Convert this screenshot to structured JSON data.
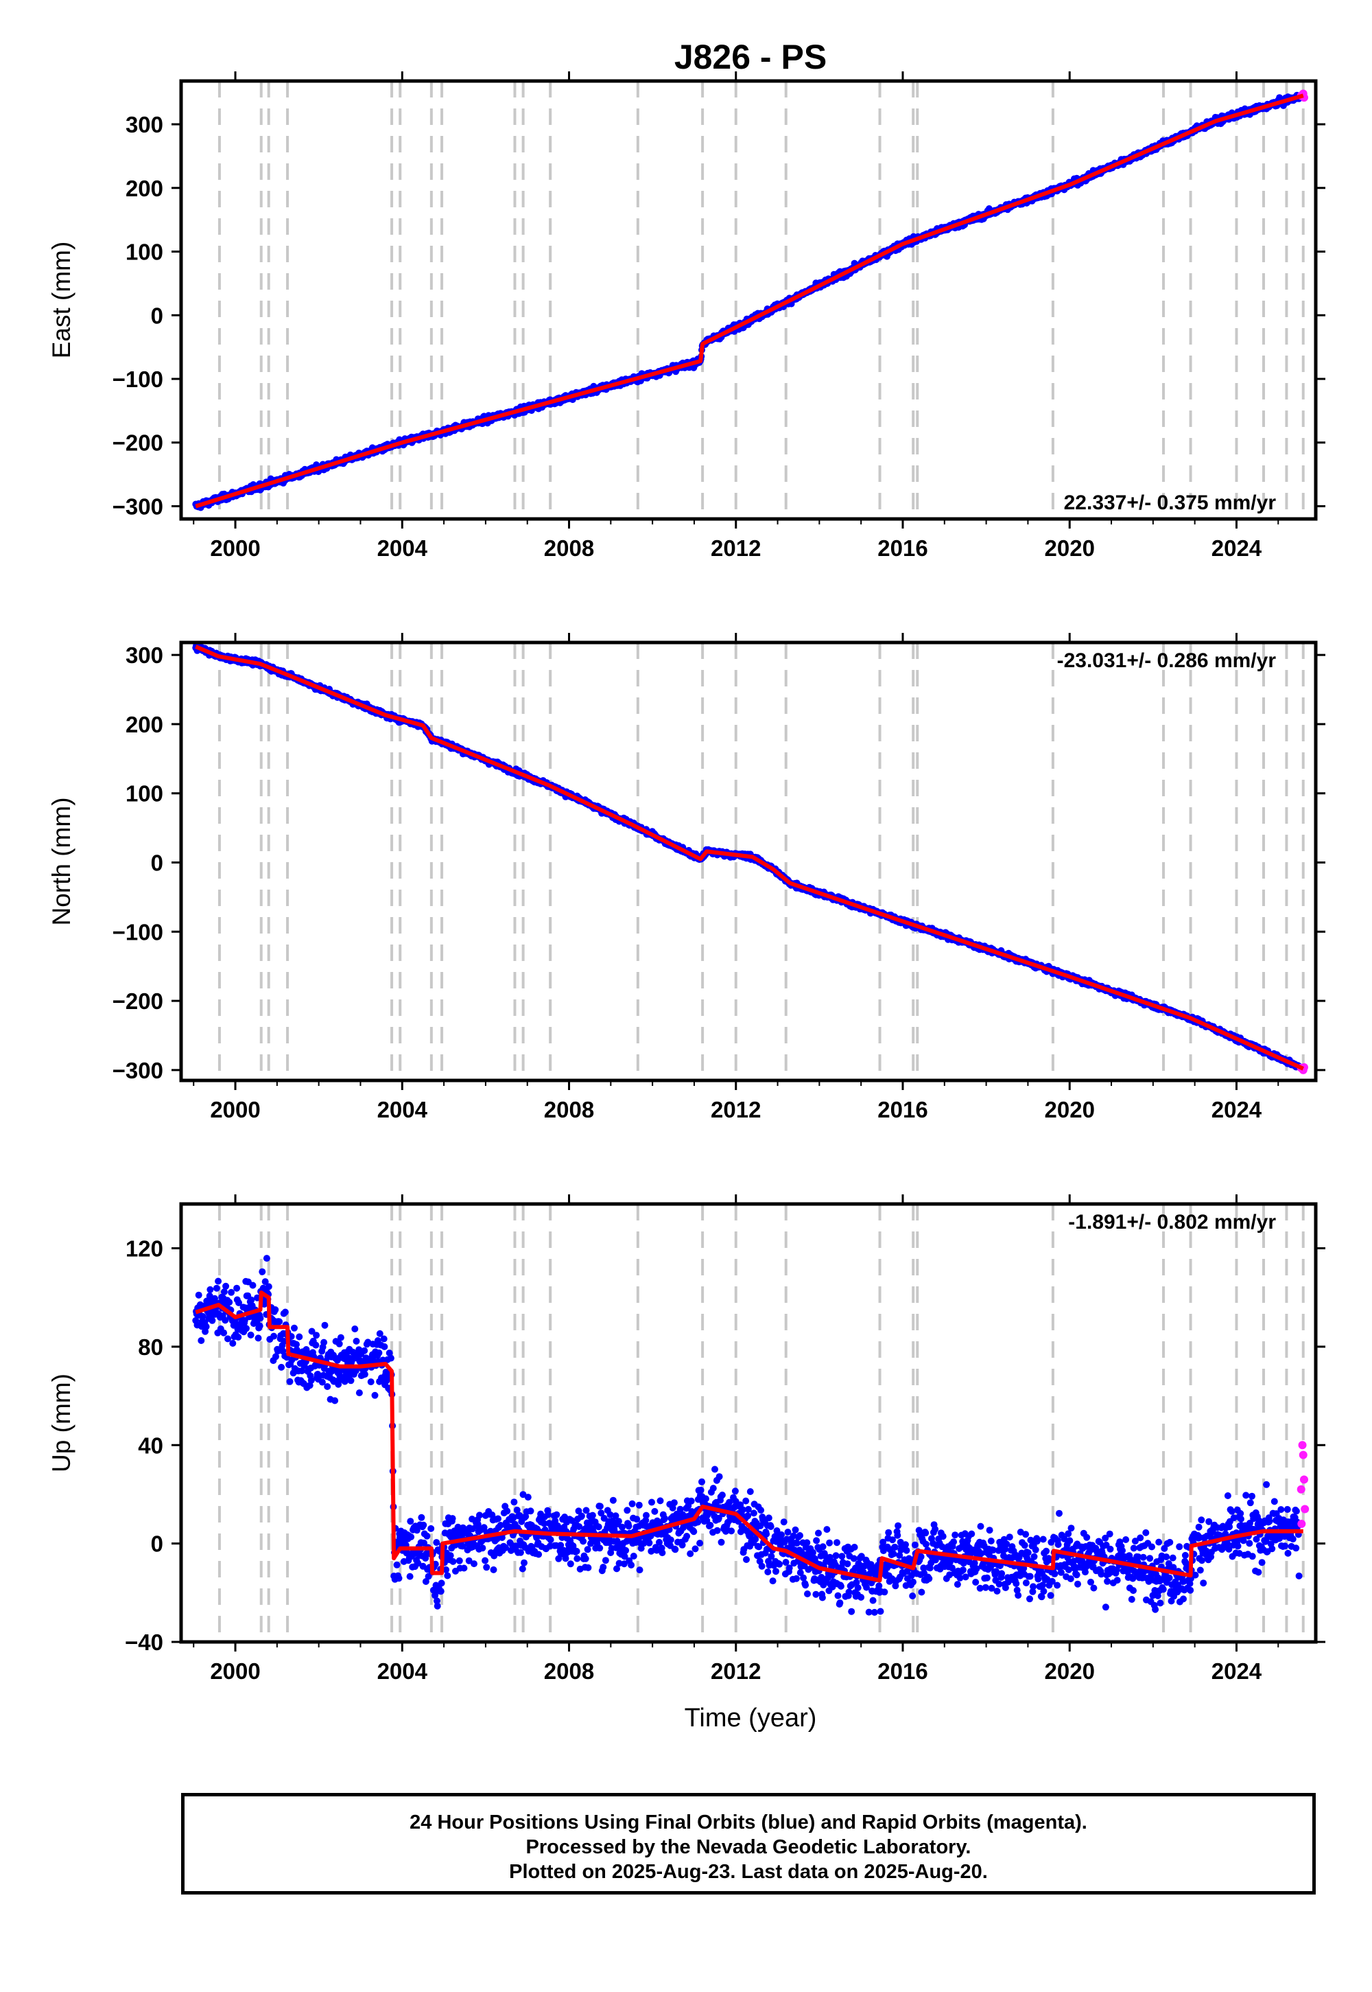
{
  "chart_data": {
    "type": "scatter",
    "title": "J826 - PS",
    "xlabel": "Time (year)",
    "xlim": [
      1998.7,
      2025.9
    ],
    "xticks": [
      2000,
      2004,
      2008,
      2012,
      2016,
      2020,
      2024
    ],
    "series_legend": [
      "Final Orbits (blue)",
      "Rapid Orbits (magenta)",
      "Model (red)"
    ],
    "colors": {
      "final": "#0000ff",
      "rapid": "#ff1aff",
      "model": "#ff0000",
      "event": "#c8c8c8"
    },
    "event_lines": [
      1999.62,
      2000.62,
      2000.8,
      2001.25,
      2003.75,
      2003.95,
      2004.7,
      2004.95,
      2006.7,
      2006.9,
      2007.55,
      2009.65,
      2011.2,
      2012.0,
      2013.2,
      2015.45,
      2016.25,
      2016.35,
      2019.6,
      2022.25,
      2022.9,
      2024.0,
      2024.65,
      2025.2,
      2025.6
    ],
    "panels": [
      {
        "name": "east",
        "ylabel": "East (mm)",
        "ylim": [
          -320,
          368
        ],
        "yticks": [
          -300,
          -200,
          -100,
          0,
          100,
          200,
          300
        ],
        "rate_label": "22.337+/- 0.375 mm/yr",
        "rate_position": "bottom-right",
        "model": [
          [
            1999.05,
            -300
          ],
          [
            2003.5,
            -210
          ],
          [
            2004.0,
            -200
          ],
          [
            2011.15,
            -72
          ],
          [
            2011.2,
            -45
          ],
          [
            2013.5,
            30
          ],
          [
            2016.0,
            112
          ],
          [
            2020.0,
            205
          ],
          [
            2023.5,
            305
          ],
          [
            2025.6,
            345
          ]
        ],
        "noise_mm": 4
      },
      {
        "name": "north",
        "ylabel": "North (mm)",
        "ylim": [
          -315,
          318
        ],
        "yticks": [
          -300,
          -200,
          -100,
          0,
          100,
          200,
          300
        ],
        "rate_label": "-23.031+/- 0.286 mm/yr",
        "rate_position": "top-right",
        "model": [
          [
            1999.05,
            312
          ],
          [
            1999.6,
            298
          ],
          [
            2000.6,
            287
          ],
          [
            2001.3,
            270
          ],
          [
            2003.6,
            213
          ],
          [
            2004.5,
            198
          ],
          [
            2004.7,
            180
          ],
          [
            2007.5,
            112
          ],
          [
            2009.5,
            55
          ],
          [
            2011.15,
            5
          ],
          [
            2011.3,
            16
          ],
          [
            2012.4,
            8
          ],
          [
            2012.9,
            -10
          ],
          [
            2013.3,
            -30
          ],
          [
            2016.0,
            -85
          ],
          [
            2020.0,
            -165
          ],
          [
            2022.9,
            -225
          ],
          [
            2025.6,
            -298
          ]
        ],
        "noise_mm": 3
      },
      {
        "name": "up",
        "ylabel": "Up (mm)",
        "ylim": [
          -40,
          138
        ],
        "yticks": [
          -40,
          0,
          40,
          80,
          120
        ],
        "rate_label": "-1.891+/- 0.802 mm/yr",
        "rate_position": "top-right",
        "model": [
          [
            1999.05,
            94
          ],
          [
            1999.6,
            97
          ],
          [
            2000.0,
            92
          ],
          [
            2000.6,
            95
          ],
          [
            2000.62,
            102
          ],
          [
            2000.8,
            100
          ],
          [
            2000.82,
            88
          ],
          [
            2001.25,
            88
          ],
          [
            2001.27,
            77
          ],
          [
            2002.5,
            72
          ],
          [
            2003.0,
            72
          ],
          [
            2003.6,
            73
          ],
          [
            2003.75,
            70
          ],
          [
            2003.8,
            -6
          ],
          [
            2003.95,
            -2
          ],
          [
            2004.7,
            -2
          ],
          [
            2004.72,
            -12
          ],
          [
            2004.95,
            -12
          ],
          [
            2004.97,
            0
          ],
          [
            2006.7,
            5
          ],
          [
            2007.5,
            4
          ],
          [
            2009.5,
            3
          ],
          [
            2011.0,
            10
          ],
          [
            2011.2,
            15
          ],
          [
            2012.0,
            12
          ],
          [
            2012.9,
            -2
          ],
          [
            2013.2,
            -3
          ],
          [
            2014.0,
            -10
          ],
          [
            2015.45,
            -15
          ],
          [
            2015.5,
            -6
          ],
          [
            2016.25,
            -10
          ],
          [
            2016.35,
            -3
          ],
          [
            2019.6,
            -10
          ],
          [
            2019.62,
            -3
          ],
          [
            2022.9,
            -13
          ],
          [
            2022.92,
            -1
          ],
          [
            2024.0,
            3
          ],
          [
            2024.65,
            5
          ],
          [
            2025.6,
            5
          ]
        ],
        "noise_mm": 10
      }
    ],
    "rapid_points": {
      "east": [
        [
          2025.55,
          345
        ],
        [
          2025.6,
          348
        ],
        [
          2025.62,
          342
        ]
      ],
      "north": [
        [
          2025.55,
          -297
        ],
        [
          2025.6,
          -300
        ],
        [
          2025.62,
          -296
        ]
      ],
      "up": [
        [
          2025.55,
          22
        ],
        [
          2025.58,
          40
        ],
        [
          2025.6,
          36
        ],
        [
          2025.62,
          26
        ],
        [
          2025.64,
          14
        ],
        [
          2025.56,
          8
        ]
      ]
    }
  },
  "caption": {
    "line1": "24 Hour Positions Using Final Orbits (blue) and Rapid Orbits (magenta).",
    "line2": "Processed by the Nevada Geodetic Laboratory.",
    "line3": "Plotted on 2025-Aug-23. Last data on 2025-Aug-20."
  }
}
